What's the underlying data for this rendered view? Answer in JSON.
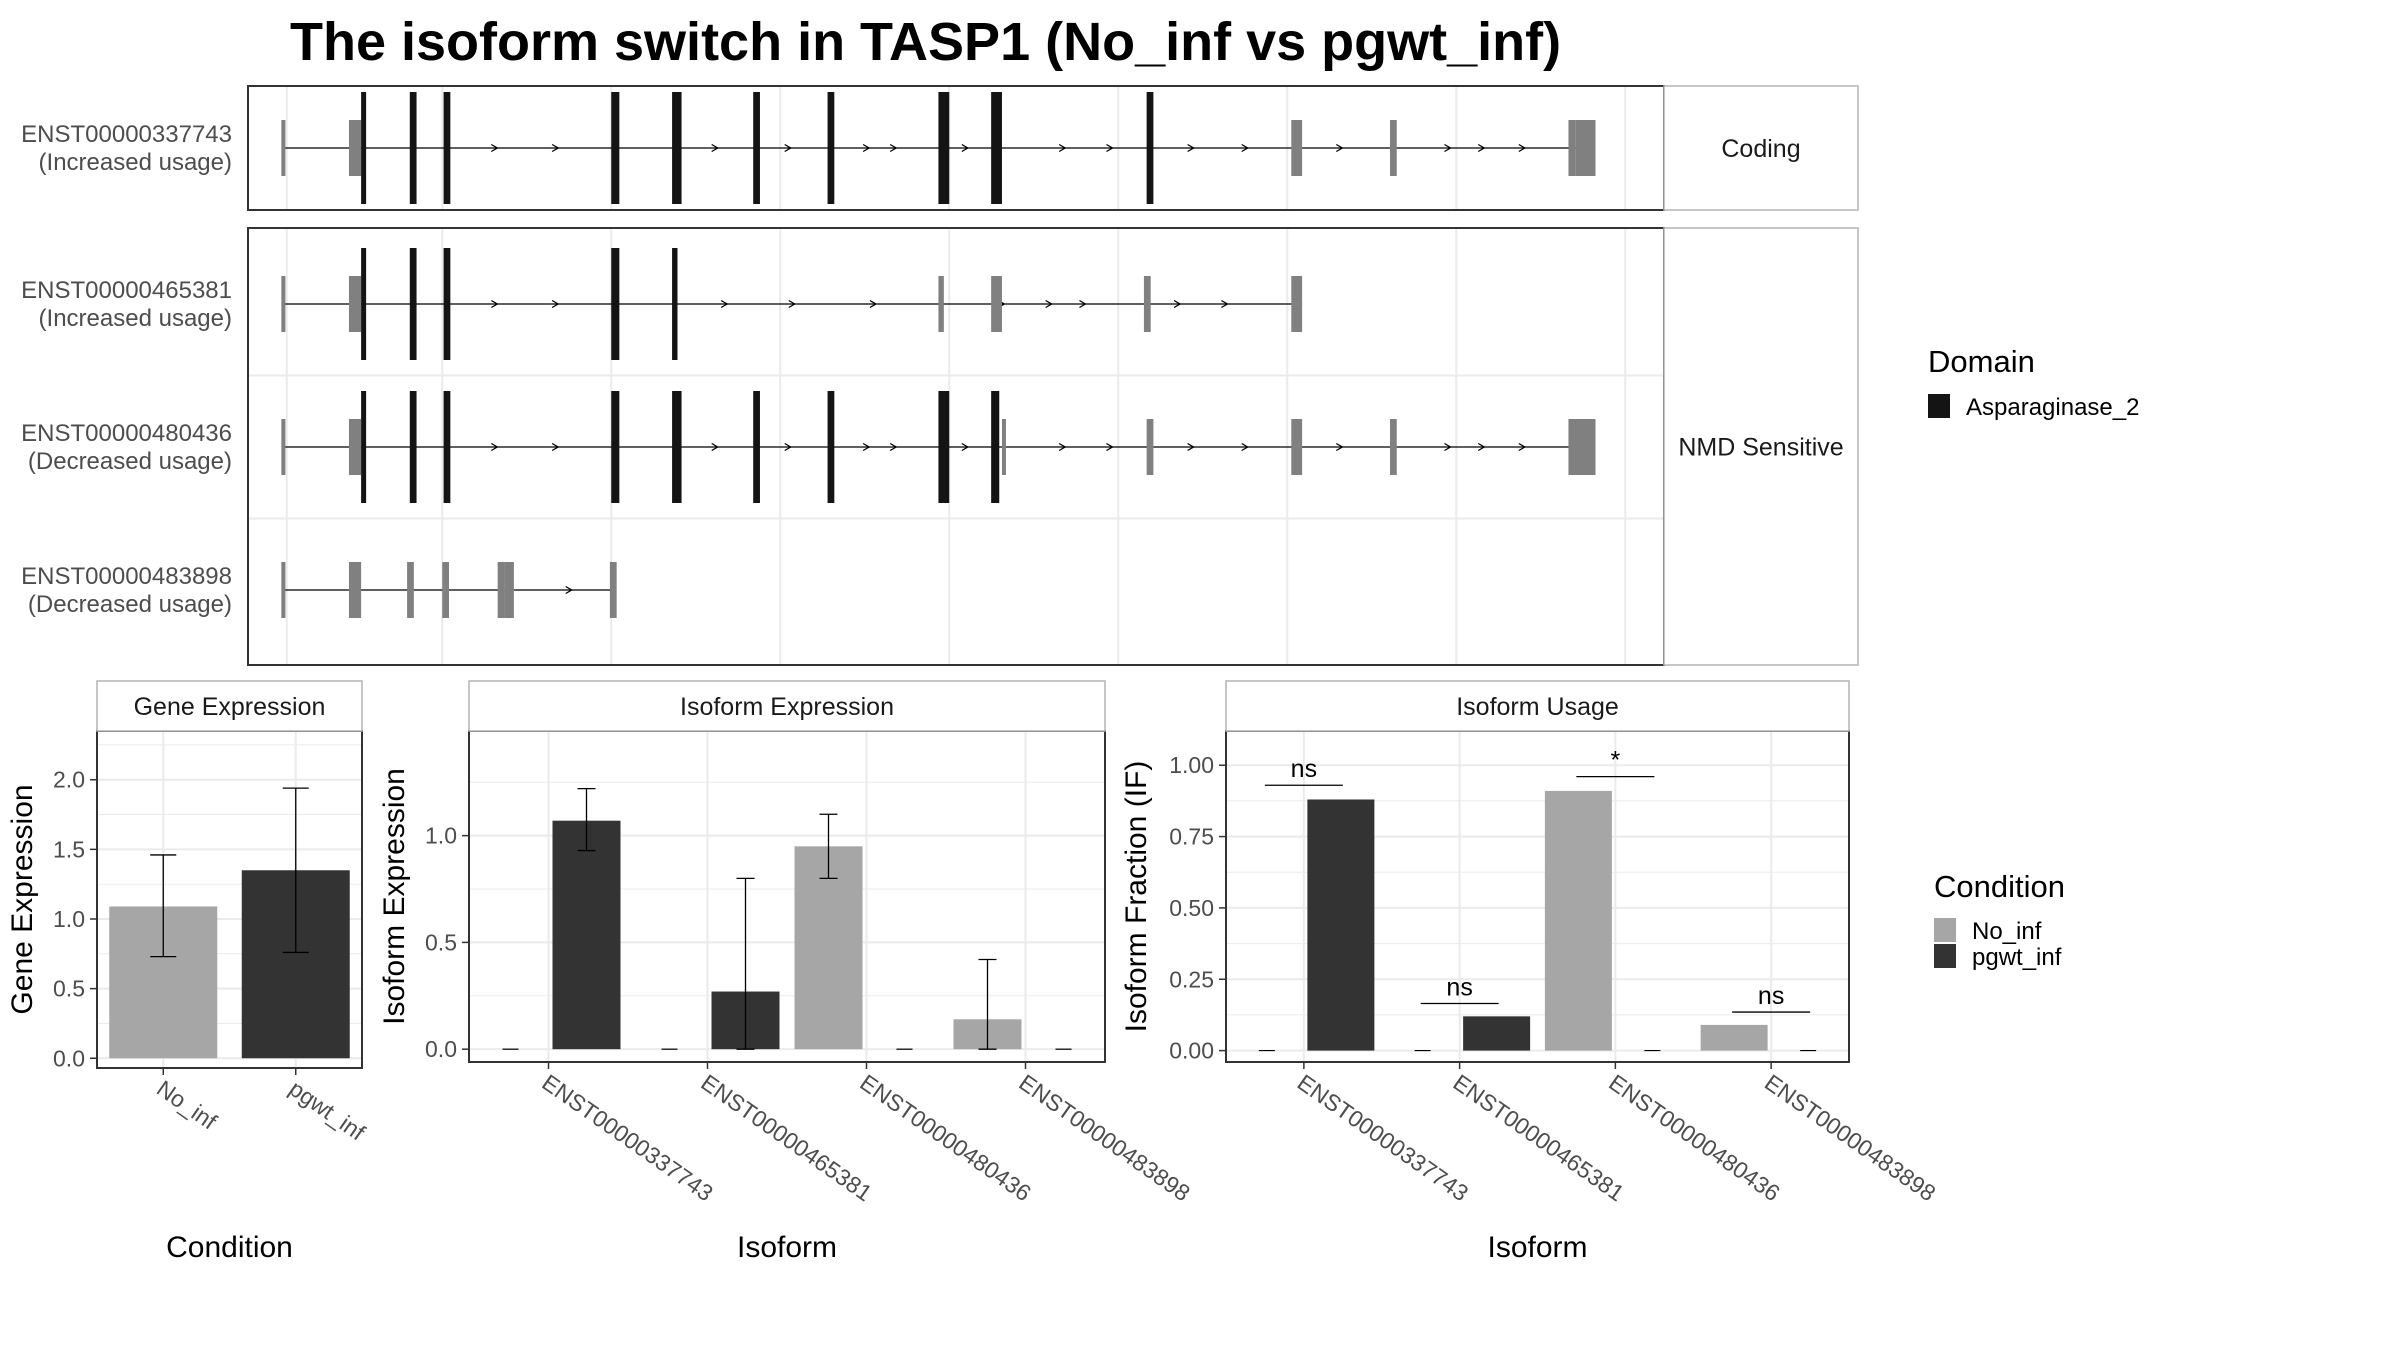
{
  "title": "The isoform switch in TASP1 (No_inf vs pgwt_inf)",
  "colors": {
    "no_inf": "#a6a6a6",
    "pgwt_inf": "#333333",
    "domain": "#141414",
    "exon": "#808080",
    "grid": "#ebebeb",
    "panel_border": "#333333",
    "strip_border": "#b3b3b3"
  },
  "structure": {
    "x_range": [
      0,
      100
    ],
    "facets": [
      {
        "label": "Coding",
        "transcripts": [
          "ENST00000337743"
        ]
      },
      {
        "label": "NMD Sensitive",
        "transcripts": [
          "ENST00000465381",
          "ENST00000480436",
          "ENST00000483898"
        ]
      }
    ],
    "transcripts": [
      {
        "id": "ENST00000337743",
        "usage": "(Increased usage)",
        "start": 0.2,
        "end": 97.3,
        "utr": [
          [
            0.1,
            0.4
          ],
          [
            5.1,
            6.0
          ],
          [
            74.8,
            75.6
          ],
          [
            82.1,
            82.6
          ],
          [
            95.3,
            95.8
          ]
        ],
        "cds": [
          [
            6.0,
            6.3
          ],
          [
            9.6,
            10.1
          ],
          [
            12.1,
            12.6
          ],
          [
            24.5,
            25.1
          ],
          [
            29.0,
            29.7
          ],
          [
            35.0,
            35.5
          ],
          [
            40.5,
            41.0
          ],
          [
            48.7,
            49.5
          ],
          [
            52.6,
            53.4
          ],
          [
            64.1,
            64.6
          ]
        ],
        "large": [
          [
            95.8,
            97.3
          ]
        ],
        "arrows": [
          16.0,
          20.5,
          32.3,
          37.7,
          43.5,
          45.5,
          50.8,
          58.0,
          61.5,
          67.5,
          71.5,
          78.5,
          86.5,
          89.0,
          92.0
        ]
      },
      {
        "id": "ENST00000465381",
        "usage": "(Increased usage)",
        "start": 0.2,
        "end": 75.6,
        "utr": [
          [
            0.1,
            0.4
          ],
          [
            5.1,
            6.0
          ],
          [
            48.7,
            49.1
          ],
          [
            52.6,
            53.4
          ],
          [
            63.9,
            64.4
          ],
          [
            74.8,
            75.6
          ]
        ],
        "cds": [
          [
            6.0,
            6.3
          ],
          [
            9.6,
            10.1
          ],
          [
            12.1,
            12.6
          ],
          [
            24.5,
            25.1
          ],
          [
            29.0,
            29.4
          ]
        ],
        "large": [],
        "arrows": [
          16.0,
          20.5,
          33.0,
          38.0,
          44.0,
          53.5,
          57.0,
          59.5,
          66.5,
          70.0
        ]
      },
      {
        "id": "ENST00000480436",
        "usage": "(Decreased usage)",
        "start": 0.2,
        "end": 97.3,
        "utr": [
          [
            0.1,
            0.4
          ],
          [
            5.1,
            6.0
          ],
          [
            53.4,
            53.6
          ],
          [
            64.1,
            64.6
          ],
          [
            74.8,
            75.6
          ],
          [
            82.1,
            82.6
          ]
        ],
        "cds": [
          [
            6.0,
            6.3
          ],
          [
            9.6,
            10.1
          ],
          [
            12.1,
            12.6
          ],
          [
            24.5,
            25.1
          ],
          [
            29.0,
            29.7
          ],
          [
            35.0,
            35.5
          ],
          [
            40.5,
            41.0
          ],
          [
            48.7,
            49.5
          ],
          [
            52.6,
            53.2
          ]
        ],
        "large": [
          [
            95.3,
            97.3
          ]
        ],
        "arrows": [
          16.0,
          20.5,
          32.3,
          37.7,
          43.5,
          45.5,
          50.8,
          58.0,
          61.5,
          67.5,
          71.5,
          78.5,
          86.5,
          89.0,
          92.0
        ]
      },
      {
        "id": "ENST00000483898",
        "usage": "(Decreased usage)",
        "start": 0.2,
        "end": 24.8,
        "utr": [
          [
            0.1,
            0.4
          ],
          [
            5.1,
            6.0
          ],
          [
            9.4,
            9.9
          ],
          [
            12.0,
            12.5
          ],
          [
            16.1,
            16.6
          ],
          [
            16.6,
            17.3
          ],
          [
            24.4,
            24.9
          ]
        ],
        "cds": [],
        "large": [],
        "arrows": [
          21.5
        ]
      }
    ]
  },
  "legend_domain": {
    "title": "Domain",
    "items": [
      {
        "label": "Asparaginase_2",
        "color": "#141414"
      }
    ]
  },
  "legend_condition": {
    "title": "Condition",
    "items": [
      {
        "label": "No_inf",
        "color": "#a6a6a6"
      },
      {
        "label": "pgwt_inf",
        "color": "#333333"
      }
    ]
  },
  "chart_data": [
    {
      "type": "bar",
      "title": "Gene Expression",
      "xlabel": "Condition",
      "ylabel": "Gene Expression",
      "categories": [
        "No_inf",
        "pgwt_inf"
      ],
      "values": [
        1.09,
        1.35
      ],
      "error": [
        [
          0.73,
          1.46
        ],
        [
          0.76,
          1.94
        ]
      ],
      "ylim": [
        -0.07,
        2.35
      ],
      "yticks": [
        "0.0",
        "0.5",
        "1.0",
        "1.5",
        "2.0"
      ],
      "grid": true
    },
    {
      "type": "bar",
      "title": "Isoform Expression",
      "xlabel": "Isoform",
      "ylabel": "Isoform Expression",
      "categories": [
        "ENST00000337743",
        "ENST00000465381",
        "ENST00000480436",
        "ENST00000483898"
      ],
      "series": [
        {
          "name": "No_inf",
          "values": [
            0.0,
            0.0,
            0.95,
            0.14
          ],
          "error": [
            [
              0.0,
              0.0
            ],
            [
              0.0,
              0.0
            ],
            [
              0.8,
              1.1
            ],
            [
              0.0,
              0.42
            ]
          ]
        },
        {
          "name": "pgwt_inf",
          "values": [
            1.07,
            0.27,
            0.0,
            0.0
          ],
          "error": [
            [
              0.93,
              1.22
            ],
            [
              0.0,
              0.8
            ],
            [
              0.0,
              0.0
            ],
            [
              0.0,
              0.0
            ]
          ]
        }
      ],
      "ylim": [
        -0.06,
        1.49
      ],
      "yticks": [
        "0.0",
        "0.5",
        "1.0"
      ],
      "grid": true
    },
    {
      "type": "bar",
      "title": "Isoform Usage",
      "xlabel": "Isoform",
      "ylabel": "Isoform Fraction (IF)",
      "categories": [
        "ENST00000337743",
        "ENST00000465381",
        "ENST00000480436",
        "ENST00000483898"
      ],
      "series": [
        {
          "name": "No_inf",
          "values": [
            0.0,
            0.0,
            0.91,
            0.09
          ]
        },
        {
          "name": "pgwt_inf",
          "values": [
            0.88,
            0.12,
            0.0,
            0.0
          ]
        }
      ],
      "significance": [
        {
          "category": 0,
          "label": "ns",
          "y": 0.93
        },
        {
          "category": 1,
          "label": "ns",
          "y": 0.165
        },
        {
          "category": 2,
          "label": "*",
          "y": 0.96
        },
        {
          "category": 3,
          "label": "ns",
          "y": 0.135
        }
      ],
      "ylim": [
        -0.04,
        1.12
      ],
      "yticks": [
        "0.00",
        "0.25",
        "0.50",
        "0.75",
        "1.00"
      ],
      "grid": true
    }
  ]
}
